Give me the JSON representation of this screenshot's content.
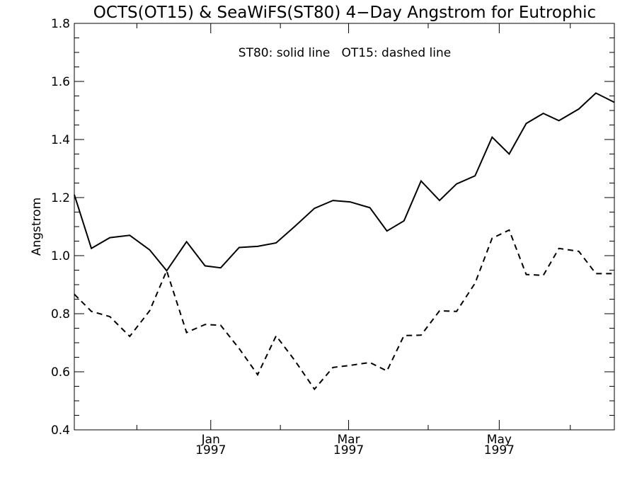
{
  "chart_data": {
    "type": "line",
    "title": "OCTS(OT15) & SeaWiFS(ST80) 4−Day Angstrom for Eutrophic",
    "annotation": "ST80: solid line   OT15: dashed line",
    "ylabel": "Angstrom",
    "xlabel": "",
    "ylim": [
      0.4,
      1.8
    ],
    "xlim": [
      0,
      38
    ],
    "y_ticks": [
      {
        "value": 0.4,
        "label": "0.4"
      },
      {
        "value": 0.6,
        "label": "0.6"
      },
      {
        "value": 0.8,
        "label": "0.8"
      },
      {
        "value": 1.0,
        "label": "1.0"
      },
      {
        "value": 1.2,
        "label": "1.2"
      },
      {
        "value": 1.4,
        "label": "1.4"
      },
      {
        "value": 1.6,
        "label": "1.6"
      },
      {
        "value": 1.8,
        "label": "1.8"
      }
    ],
    "y_minor_step": 0.05,
    "x_ticks": [
      {
        "index": 9.6,
        "month": "Jan",
        "year": "1997"
      },
      {
        "index": 19.3,
        "month": "Mar",
        "year": "1997"
      },
      {
        "index": 29.9,
        "month": "May",
        "year": "1997"
      }
    ],
    "x_minor_ticks": [
      4.4,
      14.5,
      24.9,
      34.9
    ],
    "grid": false,
    "series": [
      {
        "name": "ST80",
        "style": "solid",
        "color": "#000000",
        "x": [
          0,
          1.2,
          2.5,
          3.9,
          5.3,
          6.5,
          7.9,
          9.2,
          10.3,
          11.6,
          12.9,
          14.2,
          15.5,
          16.9,
          18.2,
          19.4,
          20.8,
          22.0,
          23.2,
          24.4,
          25.7,
          26.9,
          28.2,
          29.4,
          30.6,
          31.8,
          33.0,
          34.1,
          35.5,
          36.7,
          38
        ],
        "values": [
          1.21,
          1.025,
          1.062,
          1.07,
          1.02,
          0.948,
          1.048,
          0.965,
          0.958,
          1.028,
          1.032,
          1.044,
          1.1,
          1.163,
          1.19,
          1.185,
          1.165,
          1.085,
          1.12,
          1.257,
          1.19,
          1.247,
          1.275,
          1.408,
          1.35,
          1.455,
          1.49,
          1.465,
          1.505,
          1.56,
          1.528
        ]
      },
      {
        "name": "OT15",
        "style": "dashed",
        "color": "#000000",
        "x": [
          0,
          1.2,
          2.5,
          3.9,
          5.3,
          6.5,
          7.9,
          9.2,
          10.3,
          11.6,
          12.9,
          14.2,
          15.5,
          16.9,
          18.2,
          19.4,
          20.8,
          22.0,
          23.2,
          24.4,
          25.7,
          26.9,
          28.2,
          29.4,
          30.6,
          31.8,
          33.0,
          34.1,
          35.5,
          36.7,
          38
        ],
        "values": [
          0.867,
          0.808,
          0.79,
          0.722,
          0.81,
          0.948,
          0.735,
          0.763,
          0.76,
          0.68,
          0.59,
          0.724,
          0.64,
          0.54,
          0.615,
          0.622,
          0.632,
          0.603,
          0.725,
          0.726,
          0.81,
          0.808,
          0.905,
          1.06,
          1.088,
          0.935,
          0.932,
          1.025,
          1.015,
          0.938,
          0.938
        ]
      }
    ]
  }
}
